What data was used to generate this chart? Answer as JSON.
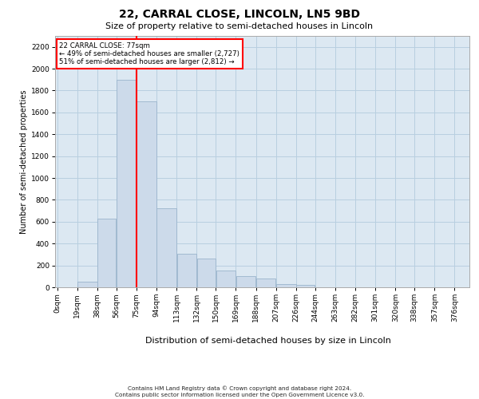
{
  "title": "22, CARRAL CLOSE, LINCOLN, LN5 9BD",
  "subtitle": "Size of property relative to semi-detached houses in Lincoln",
  "xlabel": "Distribution of semi-detached houses by size in Lincoln",
  "ylabel": "Number of semi-detached properties",
  "footer1": "Contains HM Land Registry data © Crown copyright and database right 2024.",
  "footer2": "Contains public sector information licensed under the Open Government Licence v3.0.",
  "bar_color": "#ccdaea",
  "bar_edgecolor": "#9ab4cc",
  "grid_color": "#b8cfe0",
  "background_color": "#dce8f2",
  "property_line_x": 75,
  "annotation_text": "22 CARRAL CLOSE: 77sqm\n← 49% of semi-detached houses are smaller (2,727)\n51% of semi-detached houses are larger (2,812) →",
  "bin_edges": [
    0,
    19,
    38,
    56,
    75,
    94,
    113,
    132,
    150,
    169,
    188,
    207,
    226,
    244,
    263,
    282,
    301,
    320,
    338,
    357,
    376
  ],
  "tick_labels": [
    "0sqm",
    "19sqm",
    "38sqm",
    "56sqm",
    "75sqm",
    "94sqm",
    "113sqm",
    "132sqm",
    "150sqm",
    "169sqm",
    "188sqm",
    "207sqm",
    "226sqm",
    "244sqm",
    "263sqm",
    "282sqm",
    "301sqm",
    "320sqm",
    "338sqm",
    "357sqm",
    "376sqm"
  ],
  "bar_heights": [
    0,
    50,
    625,
    1900,
    1700,
    720,
    305,
    260,
    155,
    100,
    80,
    30,
    25,
    0,
    0,
    0,
    0,
    0,
    0,
    0
  ],
  "ylim_max": 2300,
  "yticks": [
    0,
    200,
    400,
    600,
    800,
    1000,
    1200,
    1400,
    1600,
    1800,
    2000,
    2200
  ],
  "title_fontsize": 10,
  "subtitle_fontsize": 8,
  "ylabel_fontsize": 7,
  "xlabel_fontsize": 8,
  "tick_fontsize": 6.5,
  "footer_fontsize": 5.2
}
